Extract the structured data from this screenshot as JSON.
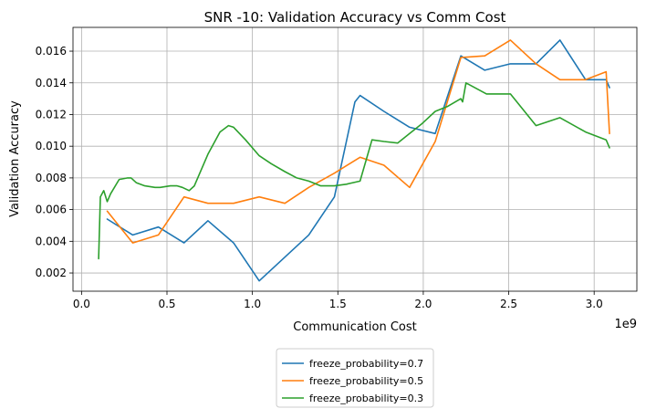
{
  "chart_data": {
    "type": "line",
    "title": "SNR -10: Validation Accuracy vs Comm Cost",
    "xlabel": "Communication Cost",
    "ylabel": "Validation Accuracy",
    "x_offset_label": "1e9",
    "xlim": [
      -0.05,
      3.25
    ],
    "ylim": [
      0.00085,
      0.0175
    ],
    "x_unit_scale": 1000000000,
    "xticks": [
      0.0,
      0.5,
      1.0,
      1.5,
      2.0,
      2.5,
      3.0
    ],
    "xtick_labels": [
      "0.0",
      "0.5",
      "1.0",
      "1.5",
      "2.0",
      "2.5",
      "3.0"
    ],
    "yticks": [
      0.002,
      0.004,
      0.006,
      0.008,
      0.01,
      0.012,
      0.014,
      0.016
    ],
    "ytick_labels": [
      "0.002",
      "0.004",
      "0.006",
      "0.008",
      "0.010",
      "0.012",
      "0.014",
      "0.016"
    ],
    "grid": true,
    "legend_position": "below-center",
    "series": [
      {
        "name": "freeze_probability=0.7",
        "color": "#1f77b4",
        "x": [
          0.15,
          0.3,
          0.45,
          0.6,
          0.74,
          0.89,
          1.04,
          1.19,
          1.33,
          1.48,
          1.6,
          1.63,
          1.77,
          1.92,
          2.07,
          2.22,
          2.36,
          2.51,
          2.66,
          2.8,
          2.95,
          3.07,
          3.09
        ],
        "y": [
          0.0054,
          0.0044,
          0.0049,
          0.0039,
          0.0053,
          0.0039,
          0.0015,
          0.003,
          0.0044,
          0.0068,
          0.0128,
          0.0132,
          0.0122,
          0.0112,
          0.0108,
          0.0157,
          0.0148,
          0.0152,
          0.0152,
          0.0167,
          0.0142,
          0.0142,
          0.0137
        ]
      },
      {
        "name": "freeze_probability=0.5",
        "color": "#ff7f0e",
        "x": [
          0.15,
          0.3,
          0.45,
          0.6,
          0.74,
          0.89,
          1.04,
          1.19,
          1.33,
          1.48,
          1.63,
          1.77,
          1.92,
          2.07,
          2.22,
          2.36,
          2.51,
          2.66,
          2.8,
          2.95,
          3.07,
          3.09
        ],
        "y": [
          0.0059,
          0.0039,
          0.0044,
          0.0068,
          0.0064,
          0.0064,
          0.0068,
          0.0064,
          0.0074,
          0.0083,
          0.0093,
          0.0088,
          0.0074,
          0.0103,
          0.0156,
          0.0157,
          0.0167,
          0.0152,
          0.0142,
          0.0142,
          0.0147,
          0.0108
        ]
      },
      {
        "name": "freeze_probability=0.3",
        "color": "#2ca02c",
        "x": [
          0.1,
          0.11,
          0.13,
          0.15,
          0.17,
          0.22,
          0.27,
          0.29,
          0.32,
          0.37,
          0.43,
          0.46,
          0.52,
          0.56,
          0.59,
          0.63,
          0.66,
          0.74,
          0.81,
          0.86,
          0.89,
          0.96,
          1.04,
          1.11,
          1.19,
          1.26,
          1.33,
          1.4,
          1.48,
          1.55,
          1.63,
          1.7,
          1.77,
          1.85,
          1.92,
          1.99,
          2.07,
          2.14,
          2.22,
          2.23,
          2.25,
          2.37,
          2.51,
          2.66,
          2.8,
          2.95,
          3.07,
          3.09
        ],
        "y": [
          0.0029,
          0.0068,
          0.0072,
          0.0065,
          0.007,
          0.0079,
          0.008,
          0.008,
          0.0077,
          0.0075,
          0.0074,
          0.0074,
          0.0075,
          0.0075,
          0.0074,
          0.0072,
          0.0075,
          0.0095,
          0.0109,
          0.0113,
          0.0112,
          0.0104,
          0.0094,
          0.0089,
          0.0084,
          0.008,
          0.0078,
          0.0075,
          0.0075,
          0.0076,
          0.0078,
          0.0104,
          0.0103,
          0.0102,
          0.0108,
          0.0114,
          0.0122,
          0.0125,
          0.013,
          0.0128,
          0.014,
          0.0133,
          0.0133,
          0.0113,
          0.0118,
          0.0109,
          0.0104,
          0.0099
        ]
      }
    ]
  }
}
